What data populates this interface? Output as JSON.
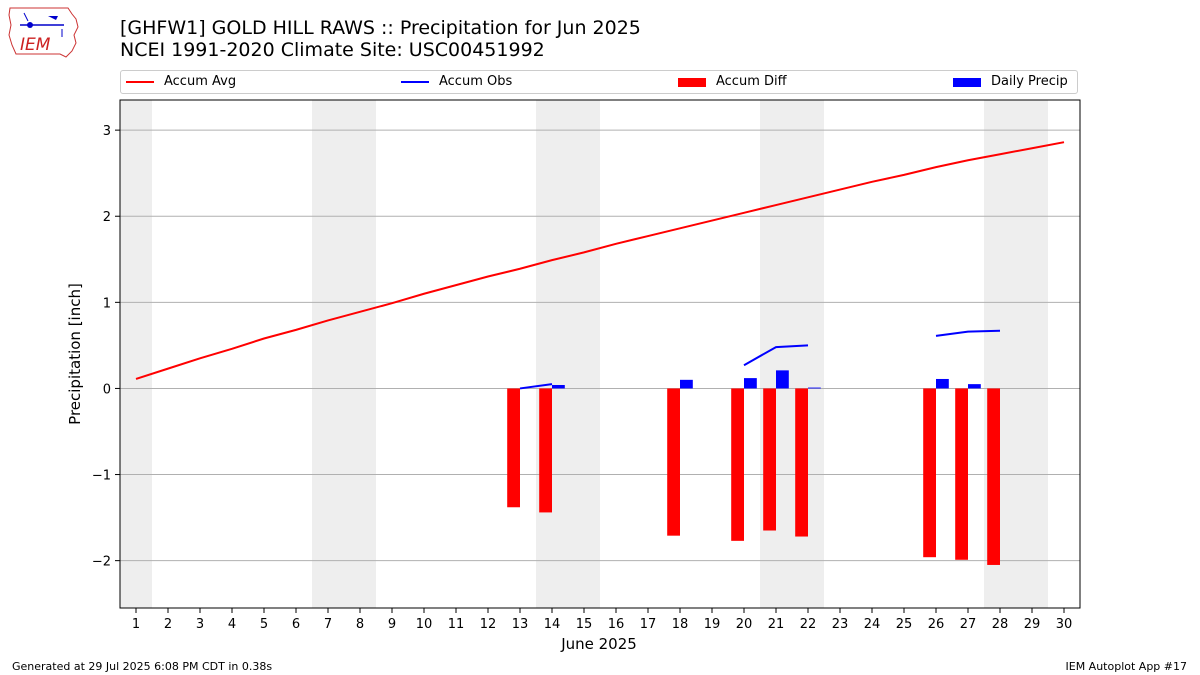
{
  "title_line1": "[GHFW1] GOLD HILL RAWS :: Precipitation for Jun 2025",
  "title_line2": "NCEI 1991-2020 Climate Site: USC00451992",
  "footer_left": "Generated at 29 Jul 2025 6:08 PM CDT in 0.38s",
  "footer_right": "IEM Autoplot App #17",
  "logo_text": "IEM",
  "colors": {
    "avg": "#ff0000",
    "obs": "#0000ff",
    "diff": "#ff0000",
    "daily": "#0000ff",
    "weekend": "#eeeeee",
    "grid": "#b0b0b0"
  },
  "chart_data": {
    "type": "bar",
    "xlabel": "June 2025",
    "ylabel": "Precipitation [inch]",
    "xlim": [
      0.5,
      30.5
    ],
    "ylim": [
      -2.55,
      3.35
    ],
    "yticks": [
      -2,
      -1,
      0,
      1,
      2,
      3
    ],
    "ytick_labels": [
      "−2",
      "−1",
      "0",
      "1",
      "2",
      "3"
    ],
    "xticks": [
      1,
      2,
      3,
      4,
      5,
      6,
      7,
      8,
      9,
      10,
      11,
      12,
      13,
      14,
      15,
      16,
      17,
      18,
      19,
      20,
      21,
      22,
      23,
      24,
      25,
      26,
      27,
      28,
      29,
      30
    ],
    "grid": "horizontal",
    "weekend_shading": [
      [
        0.5,
        1.5
      ],
      [
        6.5,
        8.5
      ],
      [
        13.5,
        15.5
      ],
      [
        20.5,
        22.5
      ],
      [
        27.5,
        29.5
      ]
    ],
    "legend_placement": "top",
    "series": [
      {
        "name": "Accum Avg",
        "kind": "line",
        "x": [
          1,
          2,
          3,
          4,
          5,
          6,
          7,
          8,
          9,
          10,
          11,
          12,
          13,
          14,
          15,
          16,
          17,
          18,
          19,
          20,
          21,
          22,
          23,
          24,
          25,
          26,
          27,
          28,
          29,
          30
        ],
        "y": [
          0.11,
          0.23,
          0.35,
          0.46,
          0.58,
          0.68,
          0.79,
          0.89,
          0.99,
          1.1,
          1.2,
          1.3,
          1.39,
          1.49,
          1.58,
          1.68,
          1.77,
          1.86,
          1.95,
          2.04,
          2.13,
          2.22,
          2.31,
          2.4,
          2.48,
          2.57,
          2.65,
          2.72,
          2.79,
          2.86
        ]
      },
      {
        "name": "Accum Obs",
        "kind": "line",
        "segments": [
          {
            "x": [
              13,
              14
            ],
            "y": [
              0.0,
              0.05
            ]
          },
          {
            "x": [
              20,
              21,
              22
            ],
            "y": [
              0.27,
              0.48,
              0.5
            ]
          },
          {
            "x": [
              26,
              27,
              28
            ],
            "y": [
              0.61,
              0.66,
              0.67
            ]
          }
        ]
      },
      {
        "name": "Accum Diff",
        "kind": "bar",
        "offset": -0.2,
        "x": [
          13,
          14,
          18,
          20,
          21,
          22,
          26,
          27,
          28
        ],
        "y": [
          -1.38,
          -1.44,
          -1.71,
          -1.77,
          -1.65,
          -1.72,
          -1.96,
          -1.99,
          -2.05
        ]
      },
      {
        "name": "Daily Precip",
        "kind": "bar",
        "offset": 0.2,
        "x": [
          14,
          18,
          20,
          21,
          22,
          26,
          27
        ],
        "y": [
          0.04,
          0.1,
          0.12,
          0.21,
          0.01,
          0.11,
          0.05
        ]
      }
    ]
  }
}
